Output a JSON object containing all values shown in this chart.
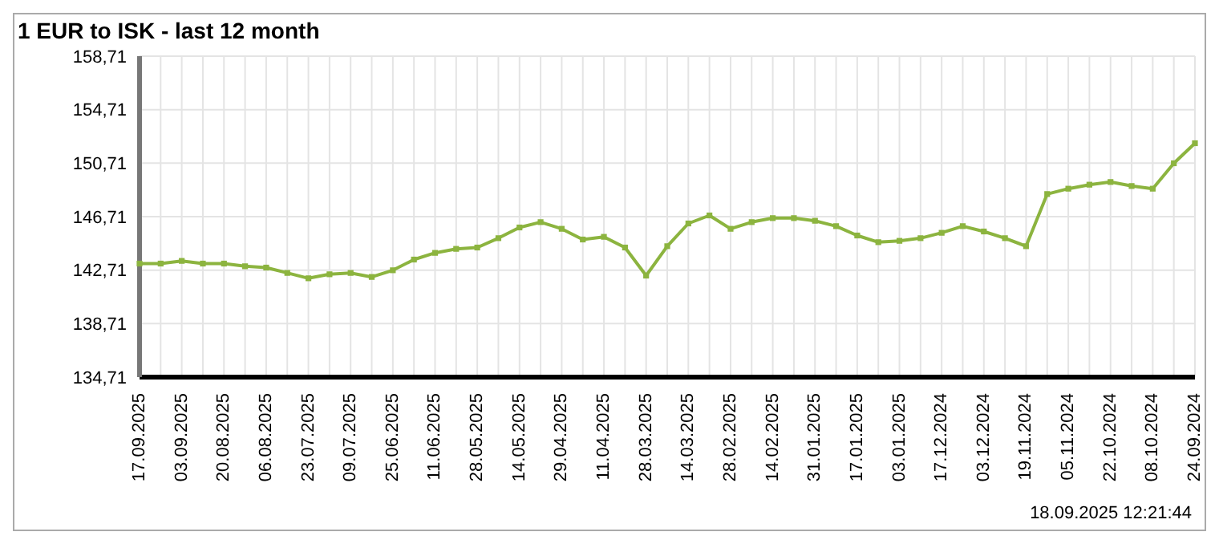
{
  "chart_data": {
    "type": "line",
    "title": "1 EUR to ISK - last 12 month",
    "categories": [
      "17.09.2025",
      null,
      "03.09.2025",
      null,
      "20.08.2025",
      null,
      "06.08.2025",
      null,
      "23.07.2025",
      null,
      "09.07.2025",
      null,
      "25.06.2025",
      null,
      "11.06.2025",
      null,
      "28.05.2025",
      null,
      "14.05.2025",
      null,
      "29.04.2025",
      null,
      "11.04.2025",
      null,
      "28.03.2025",
      null,
      "14.03.2025",
      null,
      "28.02.2025",
      null,
      "14.02.2025",
      null,
      "31.01.2025",
      null,
      "17.01.2025",
      null,
      "03.01.2025",
      null,
      "17.12.2024",
      null,
      "03.12.2024",
      null,
      "19.11.2024",
      null,
      "05.11.2024",
      null,
      "22.10.2024",
      null,
      "08.10.2024",
      null,
      "24.09.2024"
    ],
    "series": [
      {
        "color": "#8cb43f",
        "values": [
          143.2,
          143.2,
          143.4,
          143.2,
          143.2,
          143.0,
          142.9,
          142.5,
          142.1,
          142.4,
          142.5,
          142.2,
          142.7,
          143.5,
          144.0,
          144.3,
          144.4,
          145.1,
          145.9,
          146.3,
          145.8,
          145.0,
          145.2,
          144.4,
          142.3,
          144.5,
          146.2,
          146.8,
          145.8,
          146.3,
          146.6,
          146.6,
          146.4,
          146.0,
          145.3,
          144.8,
          144.9,
          145.1,
          145.5,
          146.0,
          145.6,
          145.1,
          144.5,
          148.4,
          148.8,
          149.1,
          149.3,
          149.0,
          148.8,
          150.7,
          152.2
        ]
      }
    ],
    "ylim": [
      134.71,
      158.71
    ],
    "yticks": [
      {
        "value": 134.71,
        "label": "134,71"
      },
      {
        "value": 138.71,
        "label": "138,71"
      },
      {
        "value": 142.71,
        "label": "142,71"
      },
      {
        "value": 146.71,
        "label": "146,71"
      },
      {
        "value": 150.71,
        "label": "150,71"
      },
      {
        "value": 154.71,
        "label": "154,71"
      },
      {
        "value": 158.71,
        "label": "158,71"
      }
    ],
    "grid": true,
    "marker": "square",
    "line_style": "solid",
    "legend": false,
    "annotations": [
      "18.09.2025 12:21:44"
    ]
  }
}
